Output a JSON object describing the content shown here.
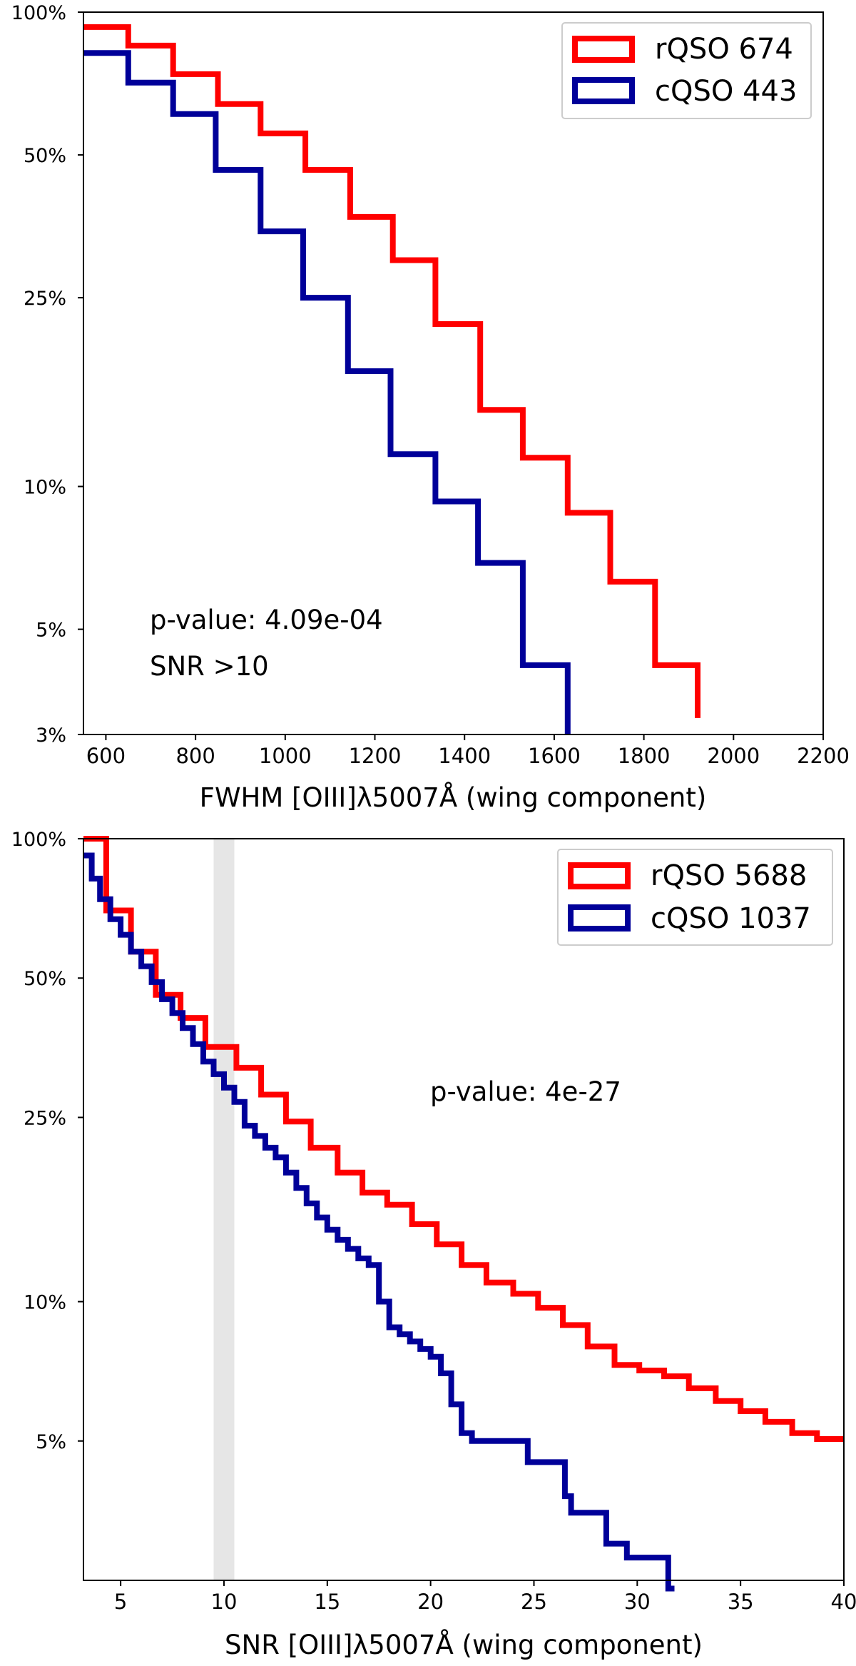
{
  "chart_data": [
    {
      "type": "line",
      "step": true,
      "title": "",
      "xlabel": "FWHM [OIII]λ5007Å (wing component)",
      "ylabel": "",
      "xlim": [
        550,
        2200
      ],
      "ylim": [
        0.03,
        1.0
      ],
      "yscale": "log",
      "xticks": [
        600,
        800,
        1000,
        1200,
        1400,
        1600,
        1800,
        2000,
        2200
      ],
      "xtick_labels": [
        "600",
        "800",
        "1000",
        "1200",
        "1400",
        "1600",
        "1800",
        "2000",
        "2200"
      ],
      "yticks": [
        0.03,
        0.05,
        0.1,
        0.25,
        0.5,
        1.0
      ],
      "ytick_labels": [
        "3%",
        "5%",
        "10%",
        "25%",
        "50%",
        "100%"
      ],
      "legend": "top-right",
      "annotations": [
        "p-value: 4.09e-04",
        "SNR >10"
      ],
      "series": [
        {
          "name": "rQSO 674",
          "color": "#ff0000",
          "x": [
            550,
            650,
            750,
            850,
            945,
            1045,
            1145,
            1240,
            1335,
            1435,
            1530,
            1630,
            1725,
            1825,
            1920
          ],
          "y": [
            0.93,
            0.85,
            0.74,
            0.64,
            0.555,
            0.465,
            0.37,
            0.3,
            0.22,
            0.145,
            0.115,
            0.088,
            0.063,
            0.042,
            0.0325
          ]
        },
        {
          "name": "cQSO 443",
          "color": "#000099",
          "x": [
            550,
            650,
            750,
            845,
            945,
            1040,
            1140,
            1235,
            1335,
            1430,
            1530,
            1630
          ],
          "y": [
            0.82,
            0.71,
            0.61,
            0.465,
            0.345,
            0.25,
            0.175,
            0.117,
            0.093,
            0.069,
            0.042,
            0.03
          ]
        }
      ]
    },
    {
      "type": "line",
      "step": true,
      "title": "",
      "xlabel": "SNR [OIII]λ5007Å (wing component)",
      "ylabel": "",
      "xlim": [
        3.2,
        40
      ],
      "ylim": [
        0.025,
        1.0
      ],
      "yscale": "log",
      "xticks": [
        5,
        10,
        15,
        20,
        25,
        30,
        35,
        40
      ],
      "xtick_labels": [
        "5",
        "10",
        "15",
        "20",
        "25",
        "30",
        "35",
        "40"
      ],
      "yticks": [
        0.05,
        0.1,
        0.25,
        0.5,
        1.0
      ],
      "ytick_labels": [
        "5%",
        "10%",
        "25%",
        "50%",
        "100%"
      ],
      "shaded_band": [
        9.5,
        10.5
      ],
      "legend": "top-right",
      "annotations": [
        "p-value: 4e-27"
      ],
      "series": [
        {
          "name": "rQSO 5688",
          "color": "#ff0000",
          "x": [
            3.2,
            4.3,
            5.5,
            6.7,
            7.9,
            9.1,
            10.6,
            11.8,
            13.0,
            14.2,
            15.5,
            16.7,
            17.9,
            19.1,
            20.3,
            21.5,
            22.7,
            24.0,
            25.2,
            26.4,
            27.6,
            28.9,
            30.1,
            31.3,
            32.5,
            33.8,
            35.0,
            36.2,
            37.5,
            38.7,
            40.0
          ],
          "y": [
            1.0,
            0.7,
            0.57,
            0.46,
            0.41,
            0.355,
            0.32,
            0.28,
            0.245,
            0.215,
            0.19,
            0.172,
            0.162,
            0.147,
            0.133,
            0.12,
            0.11,
            0.104,
            0.097,
            0.089,
            0.08,
            0.073,
            0.071,
            0.069,
            0.065,
            0.061,
            0.058,
            0.055,
            0.052,
            0.0505,
            0.0505
          ]
        },
        {
          "name": "cQSO 1037",
          "color": "#000099",
          "x": [
            3.2,
            3.6,
            4.0,
            4.5,
            5.0,
            5.5,
            6.0,
            6.5,
            7.0,
            7.5,
            8.0,
            8.5,
            9.0,
            9.5,
            10.0,
            10.5,
            11.0,
            11.5,
            12.0,
            12.5,
            13.0,
            13.5,
            14.0,
            14.5,
            15.0,
            15.5,
            16.0,
            16.5,
            17.0,
            17.5,
            18.0,
            18.5,
            19.0,
            19.5,
            20.0,
            20.5,
            21.0,
            21.5,
            22.0,
            23.0,
            24.0,
            24.7,
            25.5,
            26.5,
            26.8,
            27.5,
            28.5,
            29.5,
            30.5,
            31.5,
            31.8
          ],
          "y": [
            0.92,
            0.82,
            0.74,
            0.67,
            0.62,
            0.57,
            0.53,
            0.49,
            0.45,
            0.42,
            0.39,
            0.36,
            0.33,
            0.31,
            0.29,
            0.27,
            0.24,
            0.228,
            0.215,
            0.205,
            0.19,
            0.176,
            0.163,
            0.152,
            0.143,
            0.136,
            0.13,
            0.124,
            0.12,
            0.1,
            0.088,
            0.085,
            0.082,
            0.079,
            0.076,
            0.07,
            0.06,
            0.052,
            0.05,
            0.05,
            0.05,
            0.045,
            0.045,
            0.038,
            0.035,
            0.035,
            0.03,
            0.028,
            0.028,
            0.024,
            0.024
          ]
        }
      ]
    }
  ]
}
